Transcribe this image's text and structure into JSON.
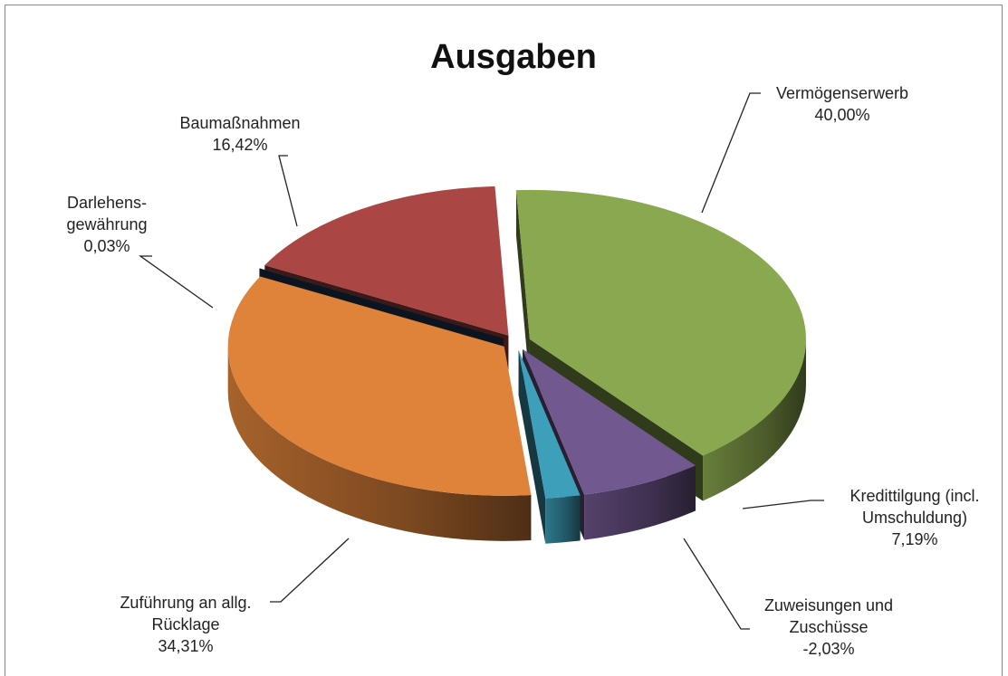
{
  "chart_data": {
    "type": "pie3d",
    "title": "Ausgaben",
    "categories": [
      "Vermögenserwerb",
      "Kredittilgung (incl. Umschuldung)",
      "Zuweisungen und Zuschüsse",
      "Zuführung an allg. Rücklage",
      "Darlehens-gewährung",
      "Baumaßnahmen"
    ],
    "values": [
      40.0,
      7.19,
      -2.03,
      34.31,
      0.03,
      16.42
    ],
    "value_labels": [
      "40,00%",
      "7,19%",
      "-2,03%",
      "34,31%",
      "0,03%",
      "16,42%"
    ],
    "colors": [
      "#8aa84f",
      "#71588f",
      "#3d9fba",
      "#df833b",
      "#1f3a5a",
      "#aa4643"
    ]
  }
}
